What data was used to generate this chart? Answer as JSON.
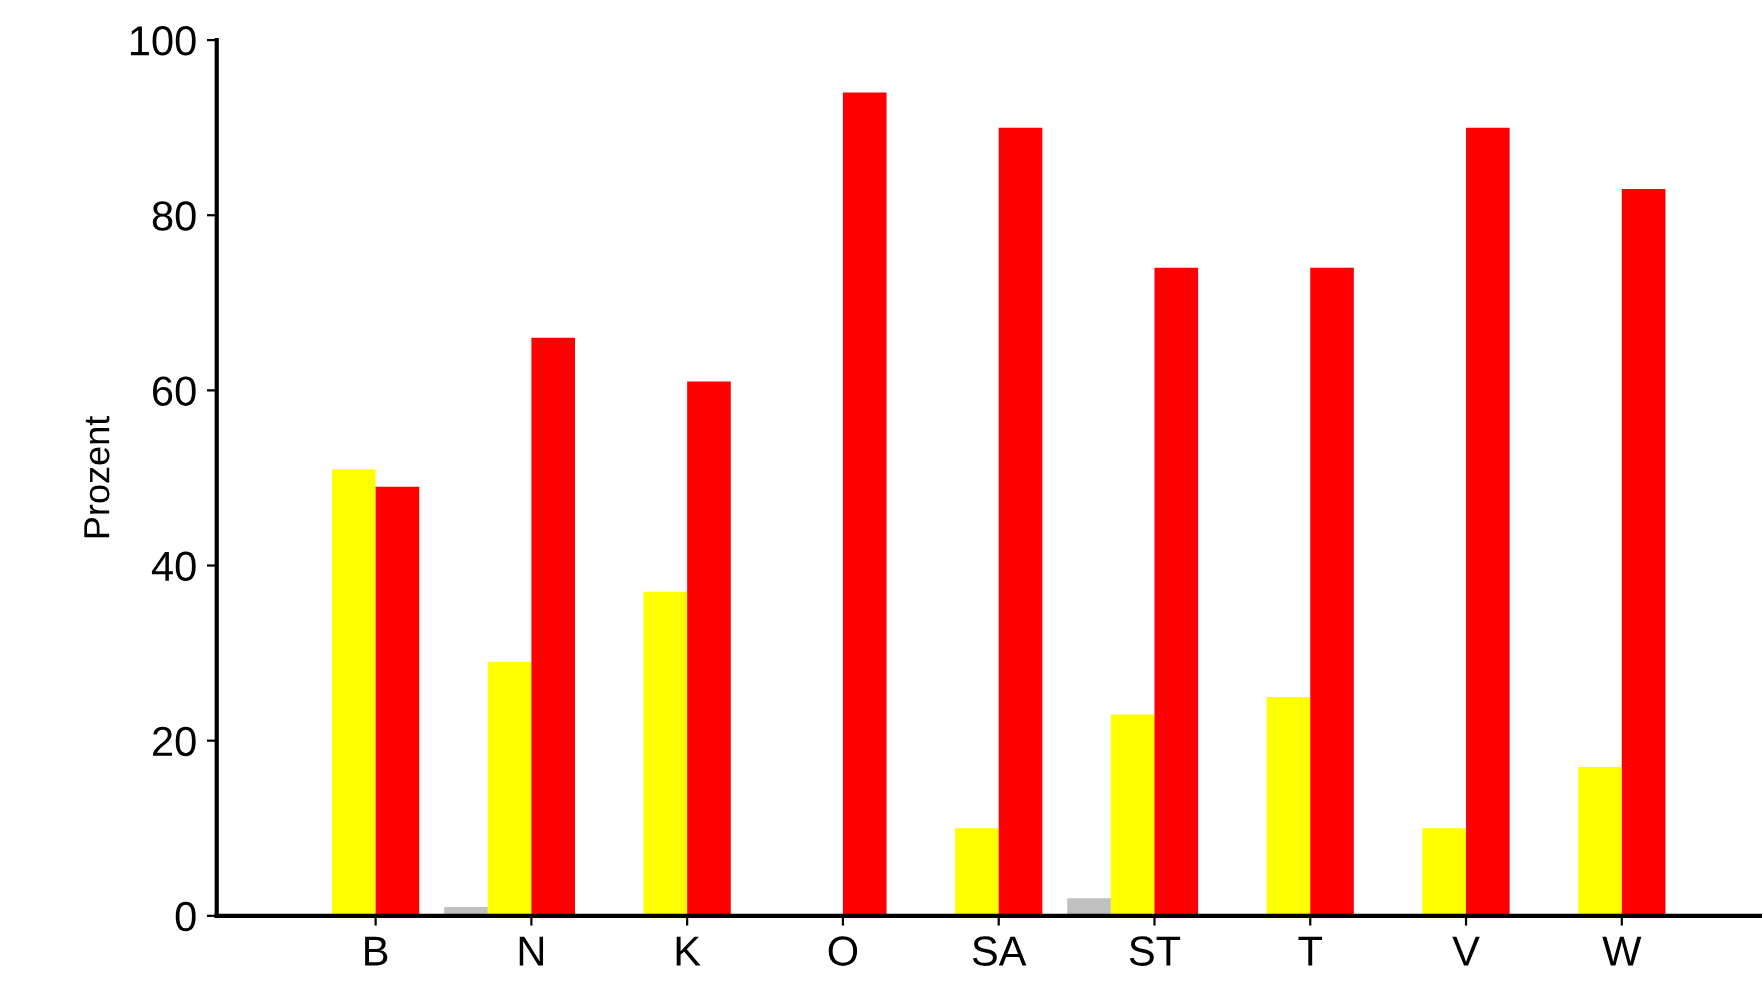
{
  "chart_data": {
    "type": "bar",
    "ylabel": "Prozent",
    "categories": [
      "B",
      "N",
      "K",
      "O",
      "SA",
      "ST",
      "T",
      "V",
      "W"
    ],
    "series": [
      {
        "color": "#c0c0c0",
        "values": [
          0,
          1,
          0,
          0,
          0,
          2,
          0,
          0,
          0
        ]
      },
      {
        "color": "#ffff00",
        "values": [
          51,
          29,
          37,
          0,
          10,
          23,
          25,
          10,
          17
        ]
      },
      {
        "color": "#ff0000",
        "values": [
          49,
          66,
          61,
          94,
          90,
          74,
          74,
          90,
          83
        ]
      }
    ],
    "ylim": [
      0,
      100
    ],
    "yticks": [
      0,
      20,
      40,
      60,
      80,
      100
    ],
    "grid": false,
    "legend": false
  }
}
